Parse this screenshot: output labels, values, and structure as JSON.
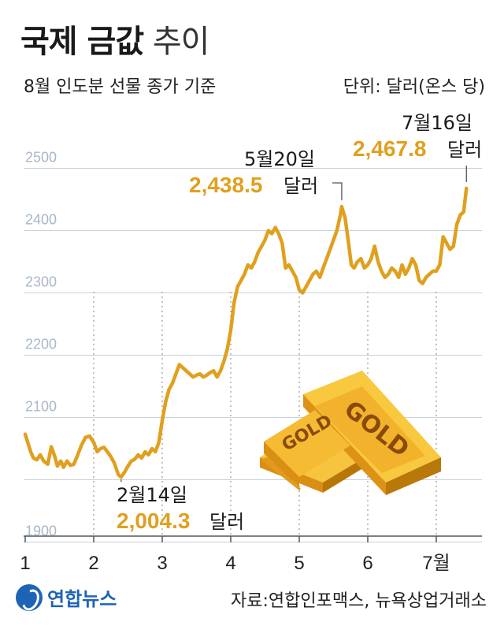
{
  "title_bold": "국제 금값",
  "title_light": "추이",
  "subtitle": "8월 인도분 선물 종가 기준",
  "unit": "단위: 달러(온스 당)",
  "source": "자료:연합인포맥스, 뉴욕상업거래소",
  "logo": "연합뉴스",
  "chart_data": {
    "type": "line",
    "title": "국제 금값 추이",
    "ylim": [
      1900,
      2550
    ],
    "yticks": [
      1900,
      2100,
      2200,
      2300,
      2400,
      2500
    ],
    "xticks": [
      {
        "label": "1",
        "t": 0.0
      },
      {
        "label": "2",
        "t": 1.0
      },
      {
        "label": "3",
        "t": 2.0
      },
      {
        "label": "4",
        "t": 3.0
      },
      {
        "label": "5",
        "t": 4.0
      },
      {
        "label": "6",
        "t": 5.0
      },
      {
        "label": "7월",
        "t": 6.0
      }
    ],
    "series": [
      {
        "color": "#e0a01e",
        "points": [
          [
            0.0,
            2073
          ],
          [
            0.08,
            2045
          ],
          [
            0.12,
            2035
          ],
          [
            0.17,
            2032
          ],
          [
            0.22,
            2040
          ],
          [
            0.27,
            2030
          ],
          [
            0.33,
            2025
          ],
          [
            0.38,
            2053
          ],
          [
            0.43,
            2038
          ],
          [
            0.47,
            2022
          ],
          [
            0.52,
            2030
          ],
          [
            0.56,
            2020
          ],
          [
            0.61,
            2030
          ],
          [
            0.66,
            2023
          ],
          [
            0.71,
            2025
          ],
          [
            0.76,
            2038
          ],
          [
            0.82,
            2055
          ],
          [
            0.88,
            2068
          ],
          [
            0.94,
            2070
          ],
          [
            1.0,
            2060
          ],
          [
            1.05,
            2045
          ],
          [
            1.1,
            2050
          ],
          [
            1.15,
            2052
          ],
          [
            1.2,
            2045
          ],
          [
            1.25,
            2037
          ],
          [
            1.3,
            2027
          ],
          [
            1.36,
            2008
          ],
          [
            1.4,
            2004.3
          ],
          [
            1.45,
            2012
          ],
          [
            1.5,
            2022
          ],
          [
            1.55,
            2030
          ],
          [
            1.6,
            2033
          ],
          [
            1.65,
            2040
          ],
          [
            1.7,
            2035
          ],
          [
            1.75,
            2045
          ],
          [
            1.8,
            2040
          ],
          [
            1.85,
            2050
          ],
          [
            1.9,
            2045
          ],
          [
            1.95,
            2060
          ],
          [
            2.0,
            2095
          ],
          [
            2.05,
            2125
          ],
          [
            2.1,
            2145
          ],
          [
            2.15,
            2155
          ],
          [
            2.2,
            2170
          ],
          [
            2.25,
            2185
          ],
          [
            2.3,
            2180
          ],
          [
            2.35,
            2175
          ],
          [
            2.4,
            2170
          ],
          [
            2.45,
            2165
          ],
          [
            2.5,
            2168
          ],
          [
            2.55,
            2170
          ],
          [
            2.6,
            2165
          ],
          [
            2.65,
            2168
          ],
          [
            2.7,
            2172
          ],
          [
            2.75,
            2175
          ],
          [
            2.8,
            2165
          ],
          [
            2.85,
            2175
          ],
          [
            2.9,
            2190
          ],
          [
            2.95,
            2210
          ],
          [
            3.0,
            2240
          ],
          [
            3.05,
            2285
          ],
          [
            3.1,
            2310
          ],
          [
            3.15,
            2320
          ],
          [
            3.2,
            2330
          ],
          [
            3.25,
            2345
          ],
          [
            3.3,
            2340
          ],
          [
            3.35,
            2350
          ],
          [
            3.4,
            2365
          ],
          [
            3.45,
            2375
          ],
          [
            3.5,
            2385
          ],
          [
            3.55,
            2400
          ],
          [
            3.6,
            2395
          ],
          [
            3.65,
            2405
          ],
          [
            3.7,
            2395
          ],
          [
            3.75,
            2380
          ],
          [
            3.8,
            2340
          ],
          [
            3.85,
            2345
          ],
          [
            3.9,
            2335
          ],
          [
            3.95,
            2325
          ],
          [
            4.0,
            2305
          ],
          [
            4.05,
            2300
          ],
          [
            4.1,
            2310
          ],
          [
            4.15,
            2320
          ],
          [
            4.2,
            2330
          ],
          [
            4.25,
            2335
          ],
          [
            4.3,
            2325
          ],
          [
            4.35,
            2340
          ],
          [
            4.4,
            2355
          ],
          [
            4.45,
            2370
          ],
          [
            4.5,
            2385
          ],
          [
            4.55,
            2400
          ],
          [
            4.6,
            2425
          ],
          [
            4.62,
            2438.5
          ],
          [
            4.67,
            2420
          ],
          [
            4.72,
            2380
          ],
          [
            4.76,
            2345
          ],
          [
            4.8,
            2340
          ],
          [
            4.85,
            2350
          ],
          [
            4.9,
            2355
          ],
          [
            4.95,
            2340
          ],
          [
            5.0,
            2345
          ],
          [
            5.05,
            2355
          ],
          [
            5.1,
            2375
          ],
          [
            5.15,
            2350
          ],
          [
            5.2,
            2335
          ],
          [
            5.25,
            2325
          ],
          [
            5.3,
            2330
          ],
          [
            5.35,
            2340
          ],
          [
            5.4,
            2335
          ],
          [
            5.45,
            2325
          ],
          [
            5.5,
            2345
          ],
          [
            5.55,
            2330
          ],
          [
            5.6,
            2340
          ],
          [
            5.65,
            2355
          ],
          [
            5.7,
            2345
          ],
          [
            5.75,
            2320
          ],
          [
            5.8,
            2315
          ],
          [
            5.85,
            2325
          ],
          [
            5.9,
            2330
          ],
          [
            5.95,
            2335
          ],
          [
            6.0,
            2335
          ],
          [
            6.05,
            2345
          ],
          [
            6.1,
            2390
          ],
          [
            6.15,
            2380
          ],
          [
            6.2,
            2370
          ],
          [
            6.25,
            2375
          ],
          [
            6.3,
            2410
          ],
          [
            6.35,
            2425
          ],
          [
            6.4,
            2430
          ],
          [
            6.44,
            2467.8
          ]
        ]
      }
    ],
    "annotations": [
      {
        "date": "2월14일",
        "value": "2,004.3",
        "unit": "달러",
        "t": 1.4,
        "y": 2004.3
      },
      {
        "date": "5월20일",
        "value": "2,438.5",
        "unit": "달러",
        "t": 4.62,
        "y": 2438.5
      },
      {
        "date": "7월16일",
        "value": "2,467.8",
        "unit": "달러",
        "t": 6.44,
        "y": 2467.8
      }
    ],
    "image_text": "GOLD",
    "grid": true
  }
}
